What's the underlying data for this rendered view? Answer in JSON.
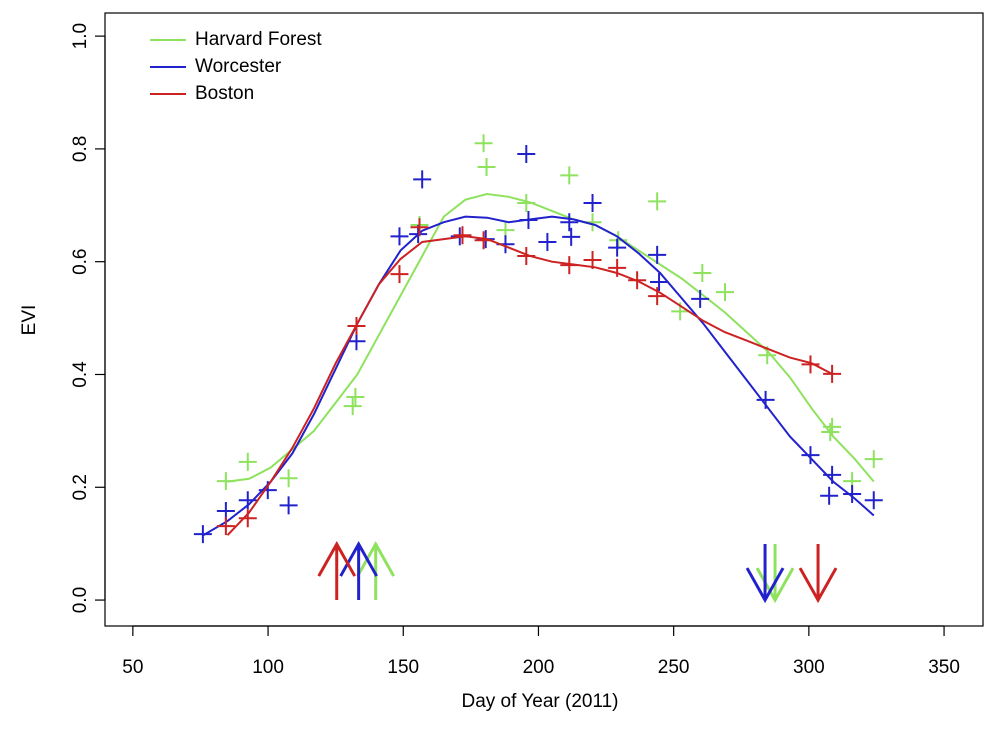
{
  "chart_data": {
    "type": "scatter",
    "x_label": "Day of Year (2011)",
    "y_label": "EVI",
    "xlim": [
      39.7,
      364.4
    ],
    "ylim": [
      -0.046,
      1.041
    ],
    "xticks": [
      50,
      100,
      150,
      200,
      250,
      300,
      350
    ],
    "yticks": [
      {
        "value": 0,
        "label": "0.0"
      },
      0.2,
      0.4,
      0.6,
      0.8,
      {
        "value": 1,
        "label": "1.0"
      }
    ],
    "legend": "top-left",
    "series": [
      {
        "name": "Harvard Forest",
        "color": "#8ee25e",
        "x": [
          84.4,
          92.5,
          107.6,
          131.3,
          132.3,
          156,
          179.7,
          180.8,
          187.8,
          195.5,
          211.4,
          220,
          229.5,
          243.9,
          252.4,
          260.6,
          269,
          284.6,
          308.6,
          307.9,
          316,
          324
        ],
        "values": [
          0.211,
          0.245,
          0.216,
          0.344,
          0.36,
          0.665,
          0.81,
          0.768,
          0.656,
          0.704,
          0.753,
          0.67,
          0.638,
          0.707,
          0.512,
          0.58,
          0.546,
          0.434,
          0.307,
          0.298,
          0.211,
          0.25
        ],
        "fit": {
          "x": [
            85,
            93,
            101,
            117,
            133,
            149,
            157,
            165,
            173,
            181,
            189,
            197,
            205,
            213,
            221,
            229,
            237,
            245,
            253,
            261,
            269,
            277,
            285,
            293,
            301,
            309,
            317,
            324
          ],
          "values": [
            0.21,
            0.215,
            0.235,
            0.3,
            0.4,
            0.54,
            0.61,
            0.68,
            0.71,
            0.72,
            0.715,
            0.705,
            0.69,
            0.675,
            0.665,
            0.645,
            0.62,
            0.595,
            0.57,
            0.54,
            0.51,
            0.475,
            0.44,
            0.395,
            0.34,
            0.29,
            0.25,
            0.21
          ]
        },
        "green_up": 139.8,
        "green_down": 287.5
      },
      {
        "name": "Worcester",
        "color": "#2222cc",
        "x": [
          75.9,
          84.4,
          92.5,
          99.9,
          107.6,
          132.7,
          148.6,
          157,
          155.5,
          170.9,
          180.5,
          187.8,
          195.5,
          196.3,
          203.3,
          211.4,
          212.1,
          220,
          229.1,
          243.9,
          244.6,
          259.8,
          284,
          300.6,
          308.6,
          307.5,
          316,
          324
        ],
        "values": [
          0.117,
          0.158,
          0.177,
          0.195,
          0.168,
          0.459,
          0.645,
          0.746,
          0.649,
          0.645,
          0.64,
          0.631,
          0.791,
          0.674,
          0.635,
          0.67,
          0.644,
          0.704,
          0.625,
          0.612,
          0.564,
          0.534,
          0.355,
          0.257,
          0.222,
          0.185,
          0.188,
          0.177
        ],
        "fit": {
          "x": [
            76,
            85,
            93,
            101,
            109,
            117,
            125,
            133,
            141,
            149,
            157,
            165,
            173,
            181,
            189,
            197,
            205,
            213,
            221,
            229,
            237,
            245,
            253,
            261,
            269,
            277,
            285,
            293,
            301,
            309,
            317,
            324
          ],
          "values": [
            0.115,
            0.14,
            0.17,
            0.21,
            0.26,
            0.33,
            0.41,
            0.49,
            0.56,
            0.62,
            0.655,
            0.67,
            0.68,
            0.678,
            0.67,
            0.675,
            0.68,
            0.675,
            0.665,
            0.645,
            0.615,
            0.58,
            0.535,
            0.49,
            0.44,
            0.39,
            0.34,
            0.29,
            0.25,
            0.21,
            0.18,
            0.15
          ]
        },
        "green_up": 133.5,
        "green_down": 283.8
      },
      {
        "name": "Boston",
        "color": "#cc2222",
        "x": [
          84.4,
          92.5,
          132.7,
          148.6,
          156,
          171.9,
          179.7,
          195.5,
          211.4,
          220,
          229.1,
          236.5,
          243.9,
          300.6,
          308.6
        ],
        "values": [
          0.131,
          0.145,
          0.486,
          0.578,
          0.661,
          0.647,
          0.638,
          0.61,
          0.594,
          0.603,
          0.589,
          0.567,
          0.539,
          0.418,
          0.401
        ],
        "fit": {
          "x": [
            85,
            93,
            101,
            109,
            117,
            125,
            133,
            141,
            149,
            157,
            165,
            173,
            181,
            189,
            197,
            205,
            213,
            221,
            229,
            237,
            245,
            253,
            261,
            269,
            277,
            285,
            293,
            301,
            309
          ],
          "values": [
            0.115,
            0.155,
            0.21,
            0.27,
            0.34,
            0.42,
            0.49,
            0.56,
            0.605,
            0.635,
            0.64,
            0.645,
            0.64,
            0.625,
            0.61,
            0.6,
            0.595,
            0.59,
            0.58,
            0.565,
            0.545,
            0.52,
            0.495,
            0.475,
            0.46,
            0.445,
            0.43,
            0.42,
            0.4
          ]
        },
        "green_up": 125.4,
        "green_down": 303.4
      }
    ]
  }
}
